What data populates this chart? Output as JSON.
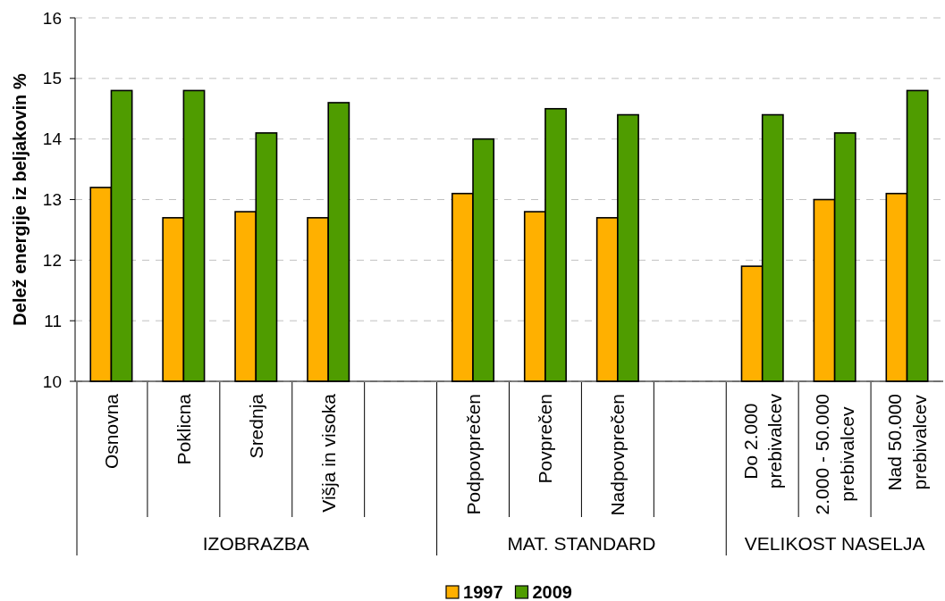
{
  "chart_data": {
    "type": "bar",
    "categories": [
      "Osnovna",
      "Poklicna",
      "Srednja",
      "Višja in visoka",
      null,
      "Podpovprečen",
      "Povprečen",
      "Nadpovprečen",
      null,
      "Do 2.000 prebivalcev",
      "2.000 - 50.000 prebivalcev",
      "Nad 50.000 prebivalcev"
    ],
    "series": [
      {
        "name": "1997",
        "color": "#ffb000",
        "values": [
          13.2,
          12.7,
          12.8,
          12.7,
          null,
          13.1,
          12.8,
          12.7,
          null,
          11.9,
          13.0,
          13.1
        ]
      },
      {
        "name": "2009",
        "color": "#4f9c00",
        "values": [
          14.8,
          14.8,
          14.1,
          14.6,
          null,
          14.0,
          14.5,
          14.4,
          null,
          14.4,
          14.1,
          14.8
        ]
      }
    ],
    "ylabel": "Delež energije iz beljakovin %",
    "ylim": [
      10,
      16
    ],
    "yticks": [
      10,
      11,
      12,
      13,
      14,
      15,
      16
    ],
    "grid": "y",
    "legend": "bottom",
    "annotations": [
      "IZOBRAZBA",
      "MAT. STANDARD",
      "VELIKOST NASELJA"
    ]
  }
}
